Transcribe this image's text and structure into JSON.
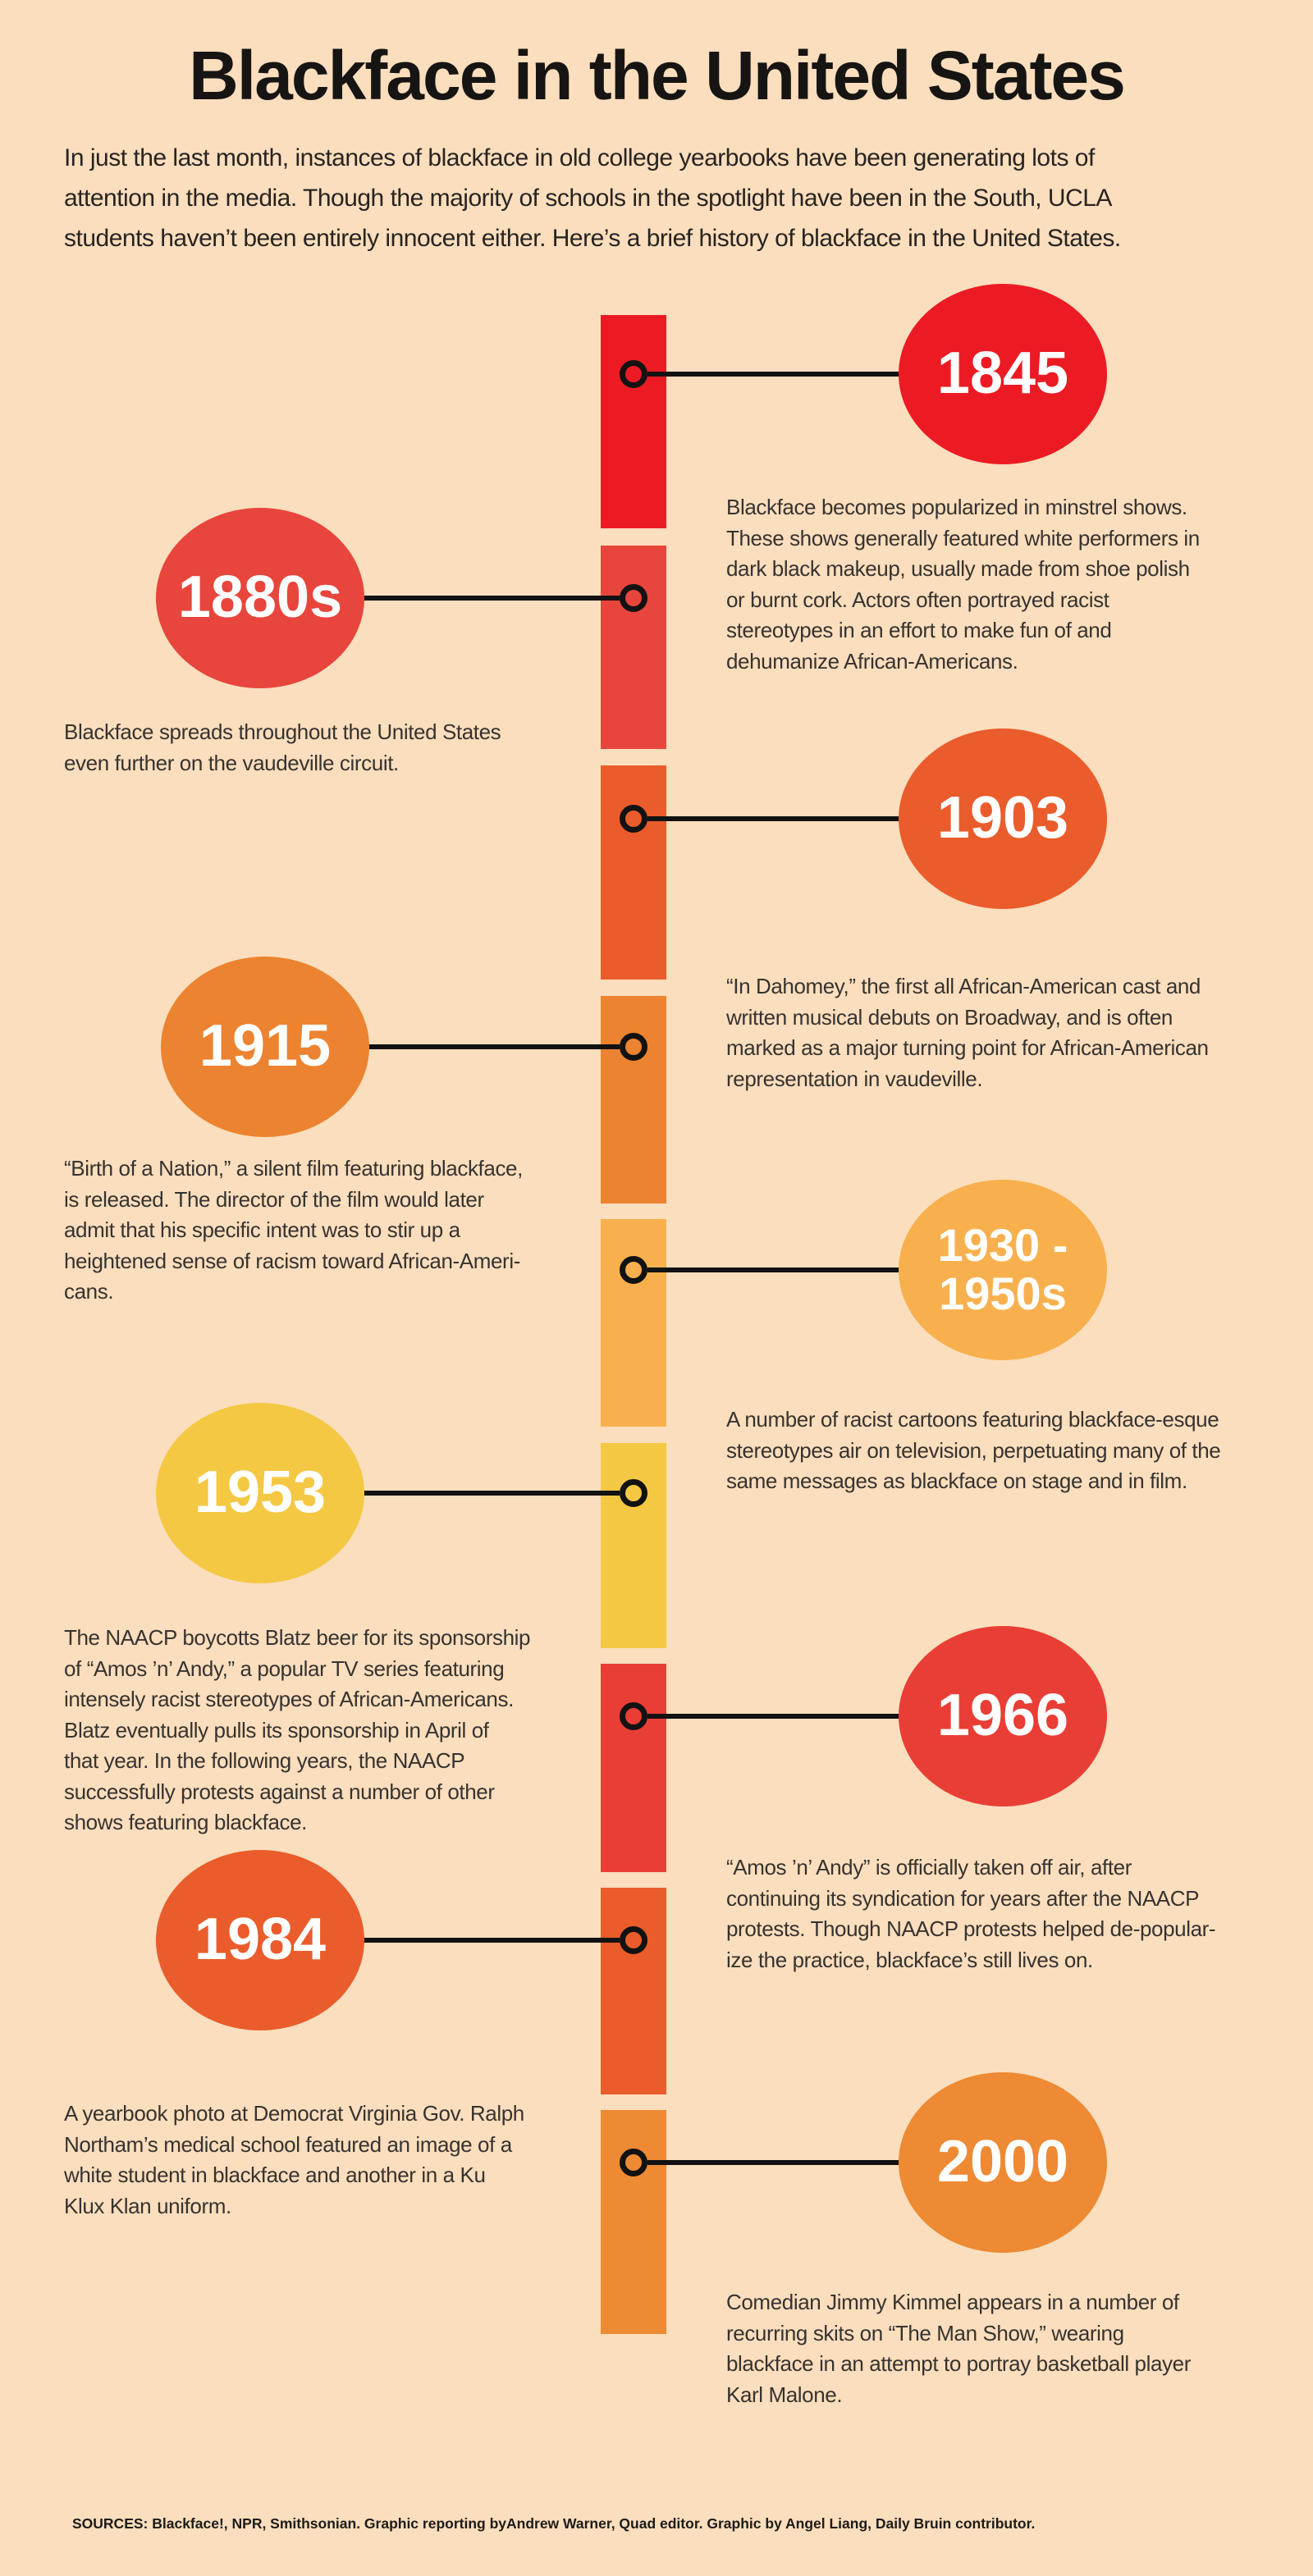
{
  "page": {
    "background_color": "#FBDEBD",
    "title": "Blackface in the United States",
    "intro": "In just the last month, instances of blackface in old college yearbooks have been generating lots of\nattention in the media. Though the majority of schools in the spotlight have been in the South, UCLA\nstudents haven’t been entirely innocent either. Here’s a brief history of blackface in the United States.",
    "sources": "SOURCES: Blackface!, NPR, Smithsonian. Graphic reporting byAndrew Warner, Quad editor. Graphic by Angel Liang, Daily Bruin contributor."
  },
  "timeline": {
    "events": [
      {
        "year_label": "1845",
        "side": "right",
        "color": "#EC1B23",
        "description": "Blackface becomes popularized in minstrel shows.\nThese shows generally featured white performers in\ndark black makeup, usually made from shoe polish\nor burnt cork. Actors often portrayed racist\nstereotypes in an effort to make fun of and\ndehumanize African-Americans."
      },
      {
        "year_label": "1880s",
        "side": "left",
        "color": "#E8453C",
        "description": "Blackface spreads throughout the United States\neven further on the vaudeville circuit."
      },
      {
        "year_label": "1903",
        "side": "right",
        "color": "#EA5C2B",
        "description": "“In Dahomey,” the first all African-American cast and\nwritten musical debuts on Broadway, and is often\nmarked as a major turning point for African-American\nrepresentation in vaudeville."
      },
      {
        "year_label": "1915",
        "side": "left",
        "color": "#EC8330",
        "description": "“Birth of a Nation,” a silent film featuring blackface,\nis released. The director of the film would later\nadmit that his specific intent was to stir up a\nheightened sense of racism toward African-Ameri-\ncans."
      },
      {
        "year_label": "1930 -\n1950s",
        "side": "right",
        "color": "#F8B04E",
        "description": "A number of racist cartoons featuring blackface-esque\nstereotypes air on television, perpetuating many of the\nsame messages as blackface on stage and in film."
      },
      {
        "year_label": "1953",
        "side": "left",
        "color": "#F4C843",
        "description": "The NAACP boycotts Blatz beer for its sponsorship\nof “Amos ’n’ Andy,” a popular TV series featuring\nintensely racist stereotypes of African-Americans.\nBlatz eventually pulls its sponsorship in April of\nthat year. In the following years, the NAACP\nsuccessfully protests against a number of other\nshows featuring blackface."
      },
      {
        "year_label": "1966",
        "side": "right",
        "color": "#E93E35",
        "description": "“Amos ’n’ Andy” is officially taken off air, after\ncontinuing its syndication for years after the NAACP\nprotests. Though NAACP protests helped de-popular-\nize the practice, blackface’s still lives on."
      },
      {
        "year_label": "1984",
        "side": "left",
        "color": "#EA5C2B",
        "description": "A yearbook photo at Democrat Virginia Gov. Ralph\nNortham’s medical school featured an image of a\nwhite student in blackface and another in a Ku\nKlux Klan uniform."
      },
      {
        "year_label": "2000",
        "side": "right",
        "color": "#ED8A33",
        "description": "Comedian Jimmy Kimmel appears in a number of\nrecurring skits on “The Man Show,” wearing\nblackface in an attempt to portray basketball player\nKarl Malone."
      }
    ]
  }
}
